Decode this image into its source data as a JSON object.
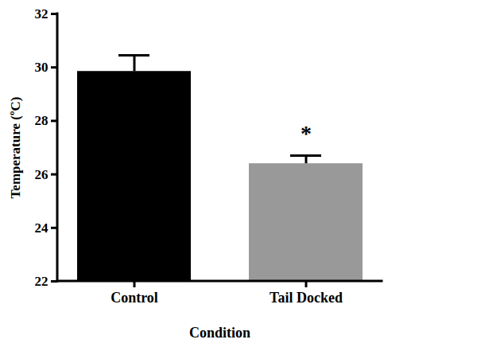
{
  "chart_data": {
    "type": "bar",
    "x_label": "Condition",
    "y_label": "Temperature (ºC)",
    "categories": [
      "Control",
      "Tail Docked"
    ],
    "values": [
      29.85,
      26.4
    ],
    "errors": [
      0.6,
      0.3
    ],
    "colors": [
      "#000000",
      "#999999"
    ],
    "ylim": [
      22,
      32
    ],
    "yticks": [
      22,
      24,
      26,
      28,
      30,
      32
    ],
    "grid": false,
    "annotations": [
      {
        "text": "*",
        "category": "Tail Docked"
      }
    ]
  }
}
